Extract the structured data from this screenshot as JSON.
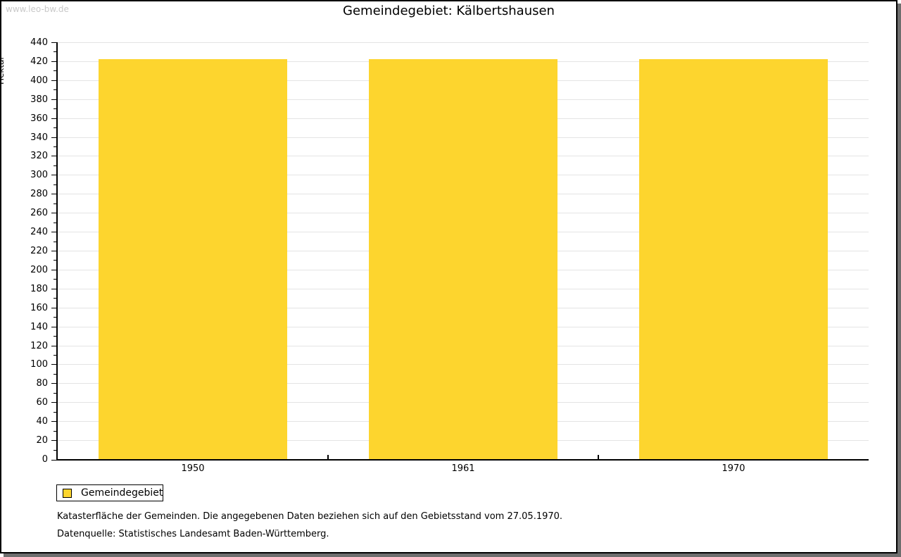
{
  "frame": {
    "watermark": "www.leo-bw.de"
  },
  "header": {
    "title": "Gemeindegebiet: Kälbertshausen"
  },
  "chart_data": {
    "type": "bar",
    "title": "Gemeindegebiet: Kälbertshausen",
    "categories": [
      "1950",
      "1961",
      "1970"
    ],
    "series": [
      {
        "name": "Gemeindegebiet",
        "values": [
          422,
          422,
          422
        ]
      }
    ],
    "xlabel": "",
    "ylabel": "Hektar",
    "ylim": [
      0,
      440
    ],
    "ytick_step": 20,
    "yminor_step": 10,
    "grid": true,
    "legend_position": "bottom-left",
    "bar_color": "#FDD52E",
    "bar_width_fraction": 0.7
  },
  "legend": {
    "items": [
      {
        "label": "Gemeindegebiet",
        "color": "#FDD52E"
      }
    ]
  },
  "footnotes": {
    "line1": "Katasterfläche der Gemeinden. Die angegebenen Daten beziehen sich auf den Gebietsstand vom 27.05.1970.",
    "line2": "Datenquelle: Statistisches Landesamt Baden-Württemberg."
  },
  "colors": {
    "bar": "#FDD52E",
    "grid": "#E4E4E4",
    "axis": "#000000",
    "watermark": "#C9C9C9",
    "frame_shadow": "#6E6E6E"
  }
}
